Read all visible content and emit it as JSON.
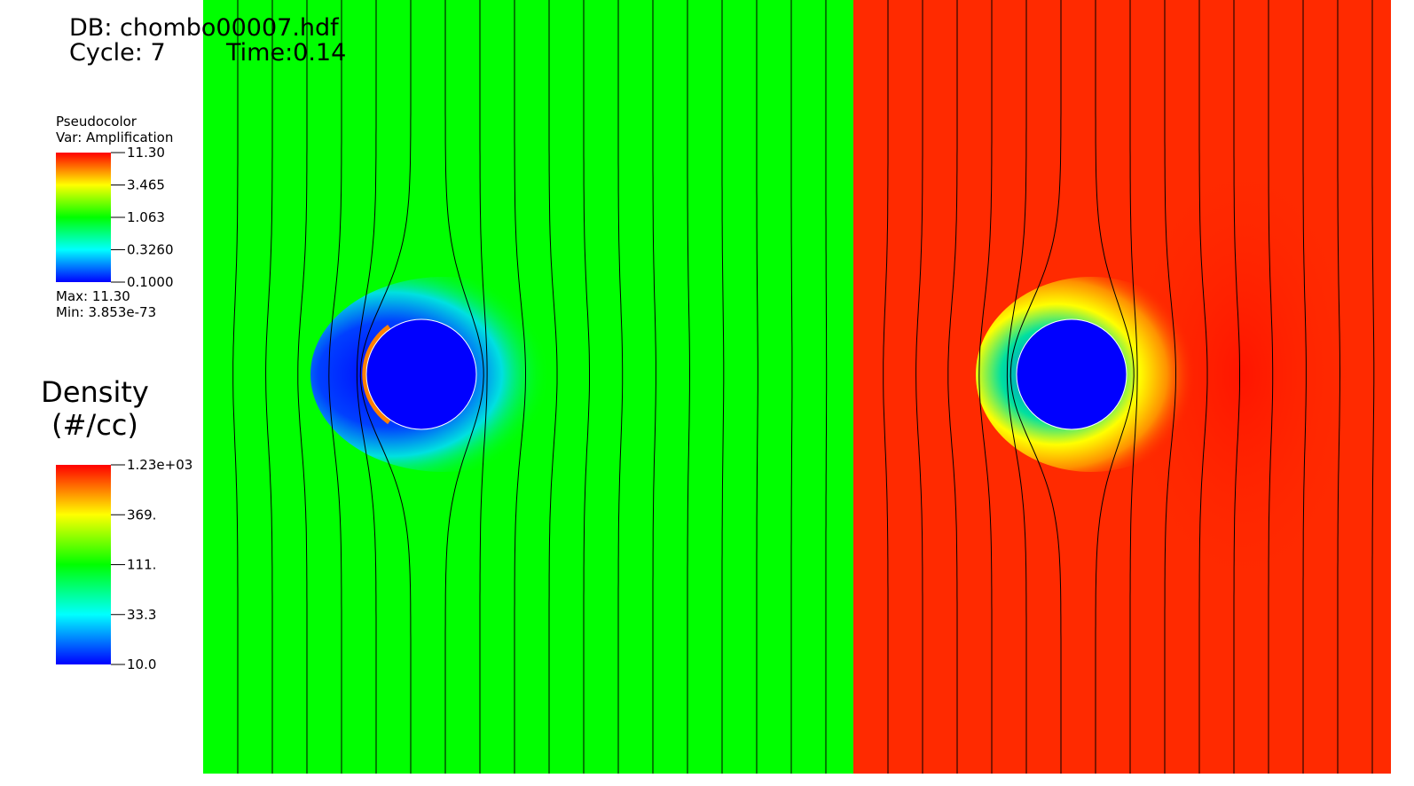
{
  "header": {
    "db": "DB: chombo00007.hdf",
    "cycle": "Cycle: 7",
    "time": "Time:0.14"
  },
  "legend_amplification": {
    "plot": "Pseudocolor",
    "var": "Var: Amplification",
    "ticks": [
      "11.30",
      "3.465",
      "1.063",
      "0.3260",
      "0.1000"
    ],
    "max": "Max:  11.30",
    "min": "Min:  3.853e-73"
  },
  "legend_density": {
    "title": "Density",
    "units": "(#/cc)",
    "ticks": [
      "1.23e+03",
      "369.",
      "111.",
      "33.3",
      "10.0"
    ]
  }
}
